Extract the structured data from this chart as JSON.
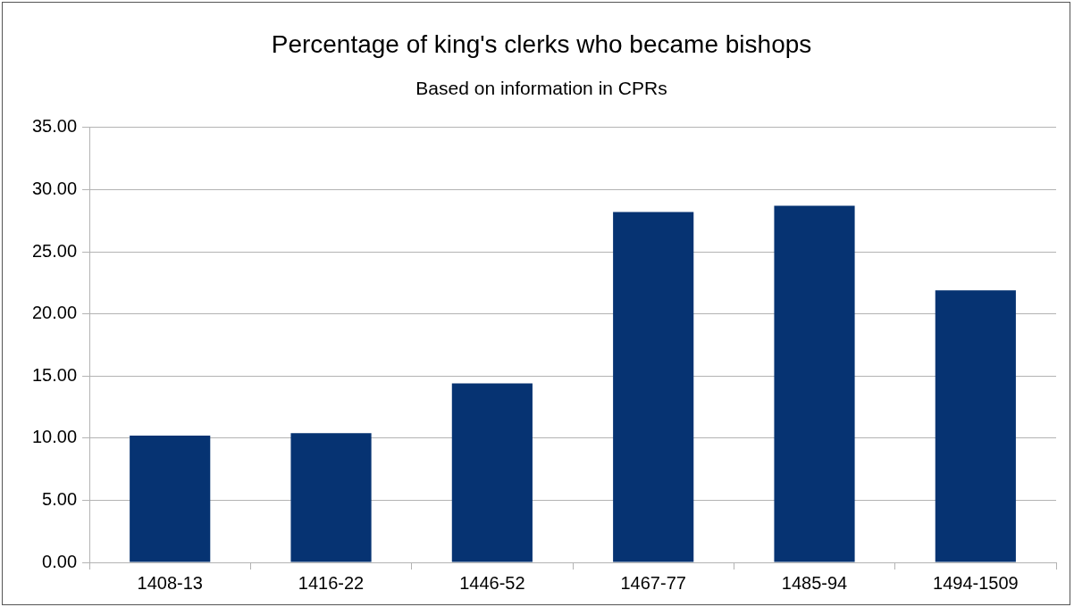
{
  "chart_data": {
    "type": "bar",
    "title": "Percentage of king's clerks who became bishops",
    "subtitle": "Based on information in CPRs",
    "categories": [
      "1408-13",
      "1416-22",
      "1446-52",
      "1467-77",
      "1485-94",
      "1494-1509"
    ],
    "values": [
      10.2,
      10.4,
      14.4,
      28.2,
      28.7,
      21.9
    ],
    "color": "#063372",
    "ylim": [
      0,
      35
    ],
    "yticks": [
      {
        "value": 0,
        "label": "0.00"
      },
      {
        "value": 5,
        "label": "5.00"
      },
      {
        "value": 10,
        "label": "10.00"
      },
      {
        "value": 15,
        "label": "15.00"
      },
      {
        "value": 20,
        "label": "20.00"
      },
      {
        "value": 25,
        "label": "25.00"
      },
      {
        "value": 30,
        "label": "30.00"
      },
      {
        "value": 35,
        "label": "35.00"
      }
    ],
    "grid": "y",
    "legend": false
  }
}
